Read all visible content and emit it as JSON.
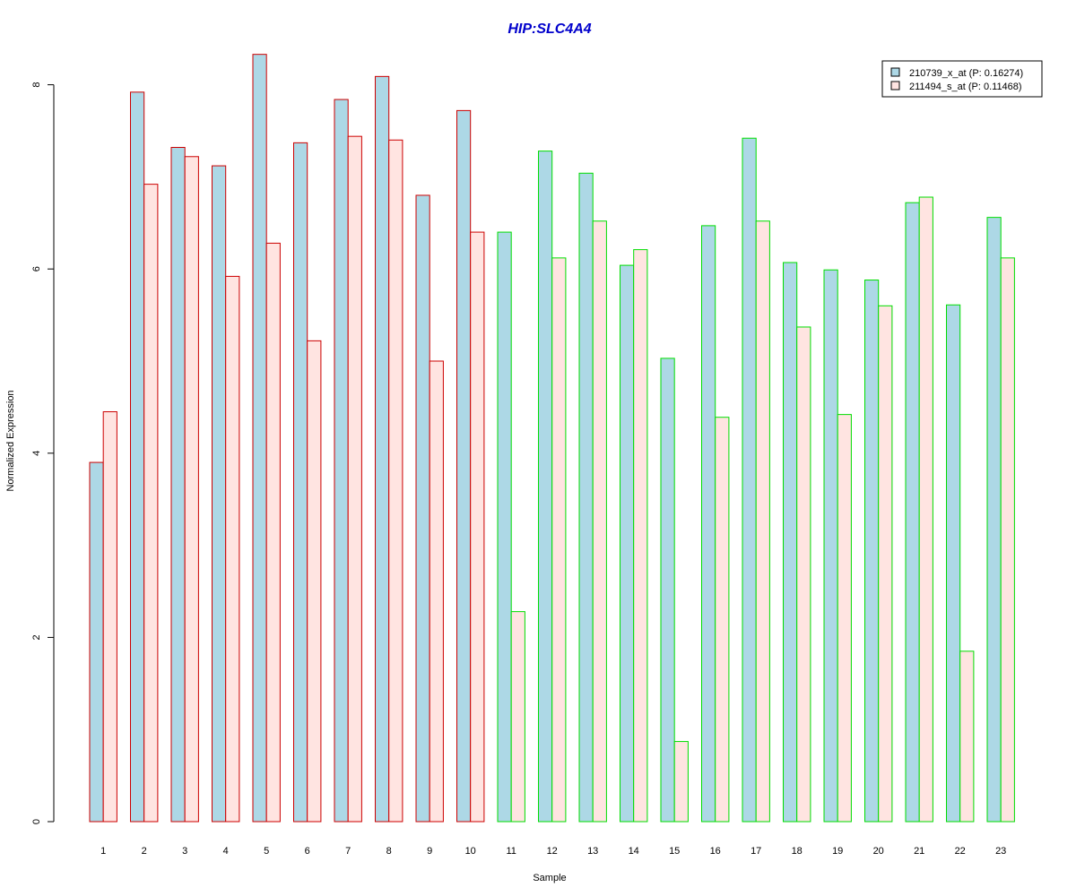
{
  "chart_data": {
    "type": "bar",
    "title": "HIP:SLC4A4",
    "xlabel": "Sample",
    "ylabel": "Normalized Expression",
    "ylim": [
      0,
      8.3
    ],
    "yticks": [
      0,
      2,
      4,
      6,
      8
    ],
    "categories": [
      "1",
      "2",
      "3",
      "4",
      "5",
      "6",
      "7",
      "8",
      "9",
      "10",
      "11",
      "12",
      "13",
      "14",
      "15",
      "16",
      "17",
      "18",
      "19",
      "20",
      "21",
      "22",
      "23"
    ],
    "group_border_colors": [
      "#cc0000",
      "#cc0000",
      "#cc0000",
      "#cc0000",
      "#cc0000",
      "#cc0000",
      "#cc0000",
      "#cc0000",
      "#cc0000",
      "#cc0000",
      "#00dd00",
      "#00dd00",
      "#00dd00",
      "#00dd00",
      "#00dd00",
      "#00dd00",
      "#00dd00",
      "#00dd00",
      "#00dd00",
      "#00dd00",
      "#00dd00",
      "#00dd00",
      "#00dd00"
    ],
    "series": [
      {
        "name": "210739_x_at (P: 0.16274)",
        "color": "#add8e6",
        "values": [
          3.9,
          7.92,
          7.32,
          7.12,
          8.33,
          7.37,
          7.84,
          8.09,
          6.8,
          7.72,
          6.4,
          7.28,
          7.04,
          6.04,
          5.03,
          6.47,
          7.42,
          6.07,
          5.99,
          5.88,
          6.72,
          5.61,
          6.56
        ]
      },
      {
        "name": "211494_s_at (P: 0.11468)",
        "color": "#ffe4e1",
        "values": [
          4.45,
          6.92,
          7.22,
          5.92,
          6.28,
          5.22,
          7.44,
          7.4,
          5.0,
          6.4,
          2.28,
          6.12,
          6.52,
          6.21,
          0.87,
          4.39,
          6.52,
          5.37,
          4.42,
          5.6,
          6.78,
          1.85,
          6.12
        ]
      }
    ],
    "legend_position": "top-right",
    "title_color": "#0000cc"
  }
}
